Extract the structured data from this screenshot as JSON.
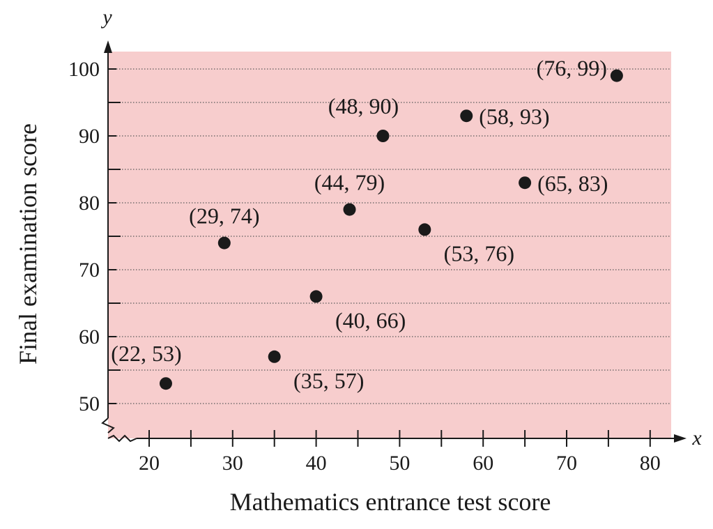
{
  "chart_data": {
    "type": "scatter",
    "xlabel": "Mathematics entrance test score",
    "ylabel": "Final examination score",
    "x_axis_letter": "x",
    "y_axis_letter": "y",
    "xlim": [
      15,
      83
    ],
    "ylim": [
      46.7,
      102.7
    ],
    "x_ticks": [
      20,
      30,
      40,
      50,
      60,
      70,
      80
    ],
    "y_ticks": [
      50,
      60,
      70,
      80,
      90,
      100
    ],
    "y_minor_step": 5,
    "x_minor_step": 5,
    "axis_break": true,
    "grid": "horizontal dotted",
    "colors": {
      "plot_background": "#f7cdcd",
      "point": "#1a1a1a",
      "axis": "#1a1a1a"
    },
    "points": [
      {
        "x": 22,
        "y": 53,
        "label": "(22, 53)",
        "label_pos": "above-left"
      },
      {
        "x": 29,
        "y": 74,
        "label": "(29, 74)",
        "label_pos": "above"
      },
      {
        "x": 35,
        "y": 57,
        "label": "(35, 57)",
        "label_pos": "below-right"
      },
      {
        "x": 40,
        "y": 66,
        "label": "(40, 66)",
        "label_pos": "below-right"
      },
      {
        "x": 44,
        "y": 79,
        "label": "(44, 79)",
        "label_pos": "above"
      },
      {
        "x": 48,
        "y": 90,
        "label": "(48, 90)",
        "label_pos": "above-left"
      },
      {
        "x": 53,
        "y": 76,
        "label": "(53, 76)",
        "label_pos": "below-right"
      },
      {
        "x": 58,
        "y": 93,
        "label": "(58, 93)",
        "label_pos": "right"
      },
      {
        "x": 65,
        "y": 83,
        "label": "(65, 83)",
        "label_pos": "right"
      },
      {
        "x": 76,
        "y": 99,
        "label": "(76, 99)",
        "label_pos": "left"
      }
    ]
  }
}
